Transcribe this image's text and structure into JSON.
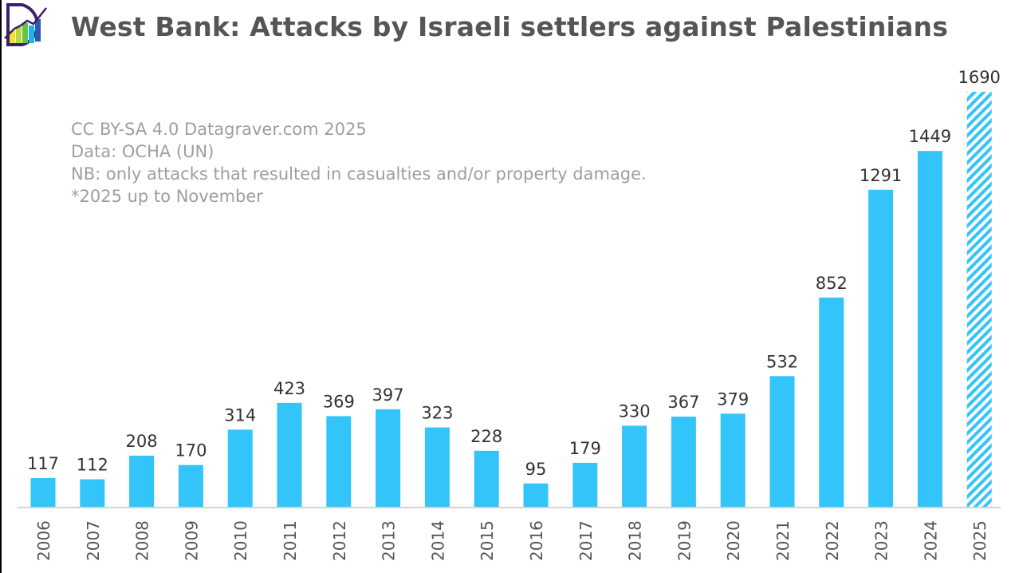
{
  "title": "West Bank: Attacks by Israeli settlers against Palestinians",
  "notes": [
    "CC BY-SA 4.0 Datagraver.com 2025",
    "Data: OCHA (UN)",
    "NB: only attacks that resulted in casualties and/or property damage.",
    "*2025 up to November"
  ],
  "colors": {
    "bar": "#33c4fa",
    "label": "#333333",
    "axis": "#d3d3d3",
    "tick": "#555555"
  },
  "chart_data": {
    "type": "bar",
    "title": "West Bank: Attacks by Israeli settlers against Palestinians",
    "xlabel": "",
    "ylabel": "",
    "categories": [
      "2006",
      "2007",
      "2008",
      "2009",
      "2010",
      "2011",
      "2012",
      "2013",
      "2014",
      "2015",
      "2016",
      "2017",
      "2018",
      "2019",
      "2020",
      "2021",
      "2022",
      "2023",
      "2024",
      "2025"
    ],
    "values": [
      117,
      112,
      208,
      170,
      314,
      423,
      369,
      397,
      323,
      228,
      95,
      179,
      330,
      367,
      379,
      532,
      852,
      1291,
      1449,
      1690
    ],
    "partial": [
      false,
      false,
      false,
      false,
      false,
      false,
      false,
      false,
      false,
      false,
      false,
      false,
      false,
      false,
      false,
      false,
      false,
      false,
      false,
      true
    ],
    "ylim": [
      0,
      1690
    ],
    "grid": false,
    "legend": "none"
  }
}
